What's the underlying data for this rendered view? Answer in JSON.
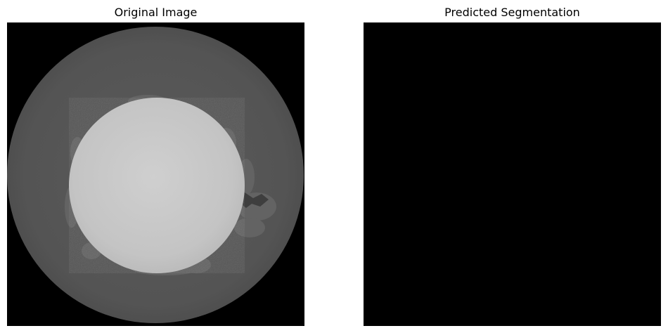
{
  "figure": {
    "panels": [
      {
        "title": "Original Image",
        "content": "grayscale CT cross-section: dark circular container with a bright circular sample in the center"
      },
      {
        "title": "Predicted Segmentation",
        "content": "empty black mask"
      }
    ]
  },
  "colors": {
    "background": "#ffffff",
    "image_background": "#000000",
    "outer_ring": "#515151",
    "inner_sample": "#c9c9c9",
    "sample_halo": "#6a6a6a",
    "segmentation_mask": "#000000"
  }
}
